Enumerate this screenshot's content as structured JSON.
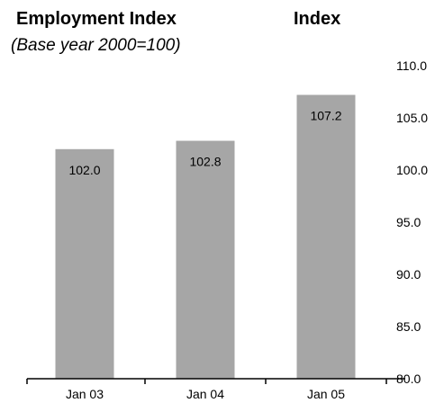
{
  "chart_data": {
    "type": "bar",
    "title": "Employment Index",
    "subtitle": "(Base year 2000=100)",
    "ylabel": "Index",
    "categories": [
      "Jan 03",
      "Jan 04",
      "Jan 05"
    ],
    "values": [
      102.0,
      102.8,
      107.2
    ],
    "value_labels": [
      "102.0",
      "102.8",
      "107.2"
    ],
    "ylim": [
      80.0,
      110.0
    ],
    "yticks": [
      "80.0",
      "85.0",
      "90.0",
      "95.0",
      "100.0",
      "105.0",
      "110.0"
    ],
    "ytick_values": [
      80,
      85,
      90,
      95,
      100,
      105,
      110
    ],
    "bar_color": "#a6a6a6",
    "grid": false,
    "legend": "none",
    "y_axis_side": "right"
  }
}
